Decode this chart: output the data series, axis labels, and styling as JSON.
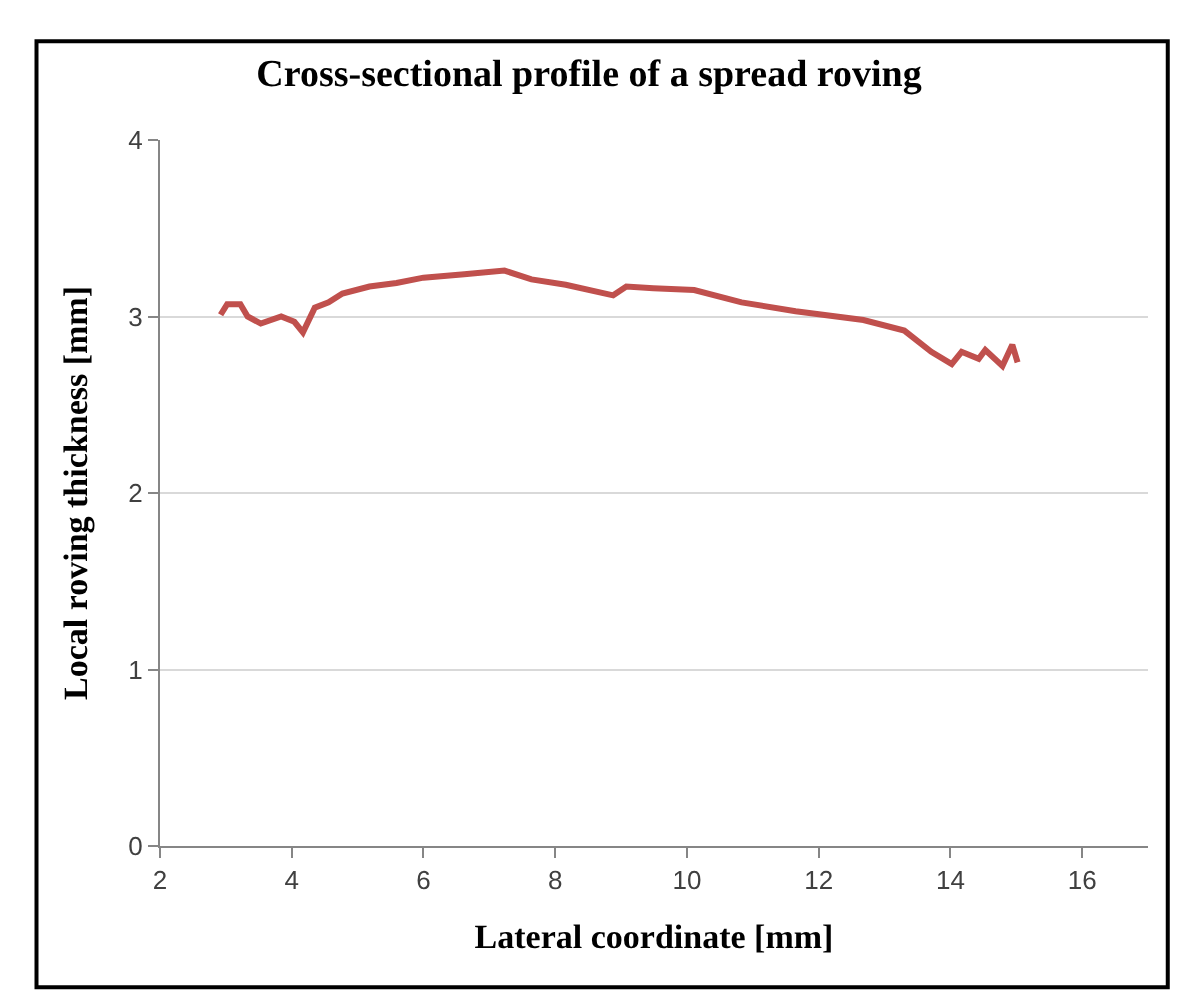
{
  "chart_data": {
    "type": "line",
    "title": "Cross-sectional profile of a spread roving",
    "xlabel": "Lateral coordinate [mm]",
    "ylabel": "Local roving thickness [mm]",
    "x": [
      2.92,
      3.02,
      3.22,
      3.33,
      3.53,
      3.84,
      4.04,
      4.17,
      4.35,
      4.56,
      4.77,
      5.18,
      5.59,
      6.0,
      6.62,
      7.23,
      7.64,
      8.16,
      8.88,
      9.08,
      9.49,
      10.11,
      10.83,
      11.65,
      12.68,
      13.3,
      13.71,
      14.02,
      14.17,
      14.43,
      14.53,
      14.79,
      14.94,
      15.02
    ],
    "series": [
      {
        "color": "#c0504d",
        "values": [
          3.01,
          3.07,
          3.07,
          3.0,
          2.96,
          3.0,
          2.97,
          2.91,
          3.05,
          3.08,
          3.13,
          3.17,
          3.19,
          3.22,
          3.24,
          3.26,
          3.21,
          3.18,
          3.12,
          3.17,
          3.16,
          3.15,
          3.08,
          3.03,
          2.98,
          2.92,
          2.8,
          2.73,
          2.8,
          2.76,
          2.81,
          2.72,
          2.84,
          2.74
        ]
      }
    ],
    "xlim": [
      2,
      17
    ],
    "xticks": [
      2,
      4,
      6,
      8,
      10,
      12,
      14,
      16
    ],
    "ylim": [
      0,
      4
    ],
    "yticks": [
      0,
      1,
      2,
      3,
      4
    ],
    "grid": "y",
    "legend": false,
    "marker": "none",
    "line_style": "solid"
  }
}
